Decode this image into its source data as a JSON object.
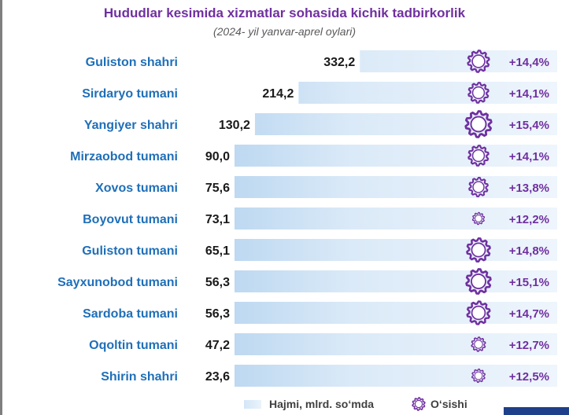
{
  "title": "Hududlar kesimida xizmatlar sohasida kichik tadbirkorlik",
  "subtitle": "(2024- yil yanvar-aprel oylari)",
  "legend": {
    "bar": "Hajmi, mlrd. so‘mda",
    "growth": "O‘sishi"
  },
  "colors": {
    "title": "#7030a0",
    "category": "#1f6fb8",
    "gear": "#7030a0",
    "bar_dark": "#8dbbe6",
    "bar_light": "#eef5fc"
  },
  "chart_data": {
    "type": "bar",
    "orientation": "horizontal",
    "title": "Hududlar kesimida xizmatlar sohasida kichik tadbirkorlik",
    "subtitle": "(2024- yil yanvar-aprel oylari)",
    "categories": [
      "Guliston shahri",
      "Sirdaryo tumani",
      "Yangiyer shahri",
      "Mirzaobod tumani",
      "Xovos tumani",
      "Boyovut tumani",
      "Guliston tumani",
      "Sayxunobod tumani",
      "Sardoba tumani",
      "Oqoltin tumani",
      "Shirin shahri"
    ],
    "series": [
      {
        "name": "Hajmi, mlrd. so‘mda",
        "values": [
          332.2,
          214.2,
          130.2,
          90.0,
          75.6,
          73.1,
          65.1,
          56.3,
          56.3,
          47.2,
          23.6
        ],
        "labels": [
          "332,2",
          "214,2",
          "130,2",
          "90,0",
          "75,6",
          "73,1",
          "65,1",
          "56,3",
          "56,3",
          "47,2",
          "23,6"
        ]
      },
      {
        "name": "O‘sishi",
        "values": [
          14.4,
          14.1,
          15.4,
          14.1,
          13.8,
          12.2,
          14.8,
          15.1,
          14.7,
          12.7,
          12.5
        ],
        "labels": [
          "+14,4%",
          "+14,1%",
          "+15,4%",
          "+14,1%",
          "+13,8%",
          "+12,2%",
          "+14,8%",
          "+15,1%",
          "+14,7%",
          "+12,7%",
          "+12,5%"
        ]
      }
    ],
    "grid": false,
    "legend_position": "bottom"
  }
}
